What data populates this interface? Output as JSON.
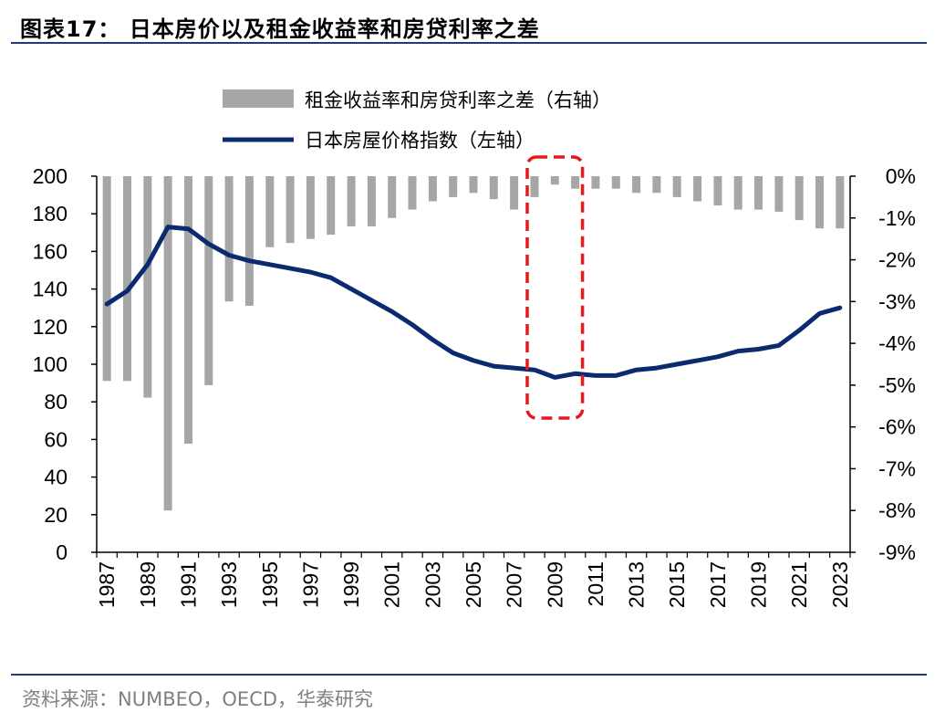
{
  "title": "图表17：  日本房价以及租金收益率和房贷利率之差",
  "source": "资料来源：NUMBEO，OECD，华泰研究",
  "colors": {
    "bar": "#a6a6a6",
    "line": "#0b2a6f",
    "highlight": "#e41a1c",
    "rule": "#1f3b73"
  },
  "chart_data": {
    "type": "bar+line",
    "categories": [
      "1987",
      "1988",
      "1989",
      "1990",
      "1991",
      "1992",
      "1993",
      "1994",
      "1995",
      "1996",
      "1997",
      "1998",
      "1999",
      "2000",
      "2001",
      "2002",
      "2003",
      "2004",
      "2005",
      "2006",
      "2007",
      "2008",
      "2009",
      "2010",
      "2011",
      "2012",
      "2013",
      "2014",
      "2015",
      "2016",
      "2017",
      "2018",
      "2019",
      "2020",
      "2021",
      "2022",
      "2023"
    ],
    "x_tick_labels": [
      "1987",
      "1989",
      "1991",
      "1993",
      "1995",
      "1997",
      "1999",
      "2001",
      "2003",
      "2005",
      "2007",
      "2009",
      "2011",
      "2013",
      "2015",
      "2017",
      "2019",
      "2021",
      "2023"
    ],
    "series": [
      {
        "name": "租金收益率和房贷利率之差（右轴）",
        "type": "bar",
        "axis": "right",
        "unit": "%",
        "values": [
          -4.9,
          -4.9,
          -5.3,
          -8.0,
          -6.4,
          -5.0,
          -3.0,
          -3.1,
          -1.7,
          -1.6,
          -1.5,
          -1.4,
          -1.2,
          -1.2,
          -1.0,
          -0.8,
          -0.6,
          -0.5,
          -0.4,
          -0.55,
          -0.8,
          -0.5,
          -0.2,
          -0.3,
          -0.3,
          -0.3,
          -0.4,
          -0.4,
          -0.5,
          -0.6,
          -0.7,
          -0.8,
          -0.8,
          -0.85,
          -1.05,
          -1.25,
          -1.25
        ]
      },
      {
        "name": "日本房屋价格指数（左轴）",
        "type": "line",
        "axis": "left",
        "values": [
          132,
          139,
          153,
          173,
          172,
          164,
          158,
          155,
          153,
          151,
          149,
          146,
          140,
          134,
          128,
          121,
          113,
          106,
          102,
          99,
          98,
          97,
          93,
          95,
          94,
          94,
          97,
          98,
          100,
          102,
          104,
          107,
          108,
          110,
          118,
          127,
          130
        ]
      }
    ],
    "left_axis": {
      "min": 0,
      "max": 200,
      "step": 20,
      "ticks": [
        "0",
        "20",
        "40",
        "60",
        "80",
        "100",
        "120",
        "140",
        "160",
        "180",
        "200"
      ]
    },
    "right_axis": {
      "min": -9,
      "max": 0,
      "step": 1,
      "ticks": [
        "-9%",
        "-8%",
        "-7%",
        "-6%",
        "-5%",
        "-4%",
        "-3%",
        "-2%",
        "-1%",
        "0%"
      ]
    },
    "highlight_range": [
      "2008",
      "2010"
    ],
    "legend_placement": "top-center",
    "grid": false
  }
}
